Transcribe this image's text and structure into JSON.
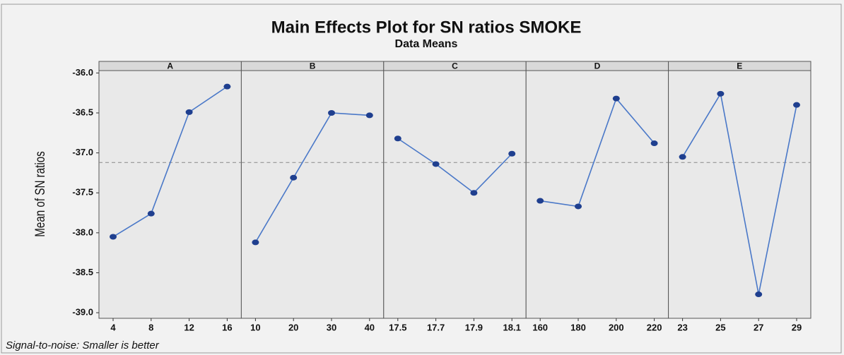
{
  "title": "Main Effects Plot for SN ratios SMOKE",
  "subtitle": "Data Means",
  "ylabel": "Mean of SN ratios",
  "footnote": "Signal-to-noise: Smaller is better",
  "chart_data": [
    {
      "type": "line",
      "title": "A",
      "categories": [
        "4",
        "8",
        "12",
        "16"
      ],
      "values": [
        -38.05,
        -37.76,
        -36.49,
        -36.17
      ],
      "color": "#1f3f8f",
      "hline": -37.12,
      "ylim": [
        -39.07,
        -35.97
      ],
      "yticks": [
        {
          "value": -36,
          "label": "-36.0"
        },
        {
          "value": -36.5,
          "label": "-36.5"
        },
        {
          "value": -37,
          "label": "-37.0"
        },
        {
          "value": -37.5,
          "label": "-37.5"
        },
        {
          "value": -38,
          "label": "-38.0"
        },
        {
          "value": -38.5,
          "label": "-38.5"
        },
        {
          "value": -39,
          "label": "-39.0"
        }
      ]
    },
    {
      "type": "line",
      "title": "B",
      "categories": [
        "10",
        "20",
        "30",
        "40"
      ],
      "values": [
        -38.12,
        -37.31,
        -36.5,
        -36.53
      ],
      "color": "#1f3f8f",
      "hline": -37.12,
      "ylim": [
        -39.07,
        -35.97
      ]
    },
    {
      "type": "line",
      "title": "C",
      "categories": [
        "17.5",
        "17.7",
        "17.9",
        "18.1"
      ],
      "values": [
        -36.82,
        -37.14,
        -37.5,
        -37.01
      ],
      "color": "#1f3f8f",
      "hline": -37.12,
      "ylim": [
        -39.07,
        -35.97
      ]
    },
    {
      "type": "line",
      "title": "D",
      "categories": [
        "160",
        "180",
        "200",
        "220"
      ],
      "values": [
        -37.6,
        -37.67,
        -36.32,
        -36.88
      ],
      "color": "#1f3f8f",
      "hline": -37.12,
      "ylim": [
        -39.07,
        -35.97
      ]
    },
    {
      "type": "line",
      "title": "E",
      "categories": [
        "23",
        "25",
        "27",
        "29"
      ],
      "values": [
        -37.05,
        -36.26,
        -38.77,
        -36.4
      ],
      "color": "#1f3f8f",
      "hline": -37.12,
      "ylim": [
        -39.07,
        -35.97
      ]
    }
  ]
}
